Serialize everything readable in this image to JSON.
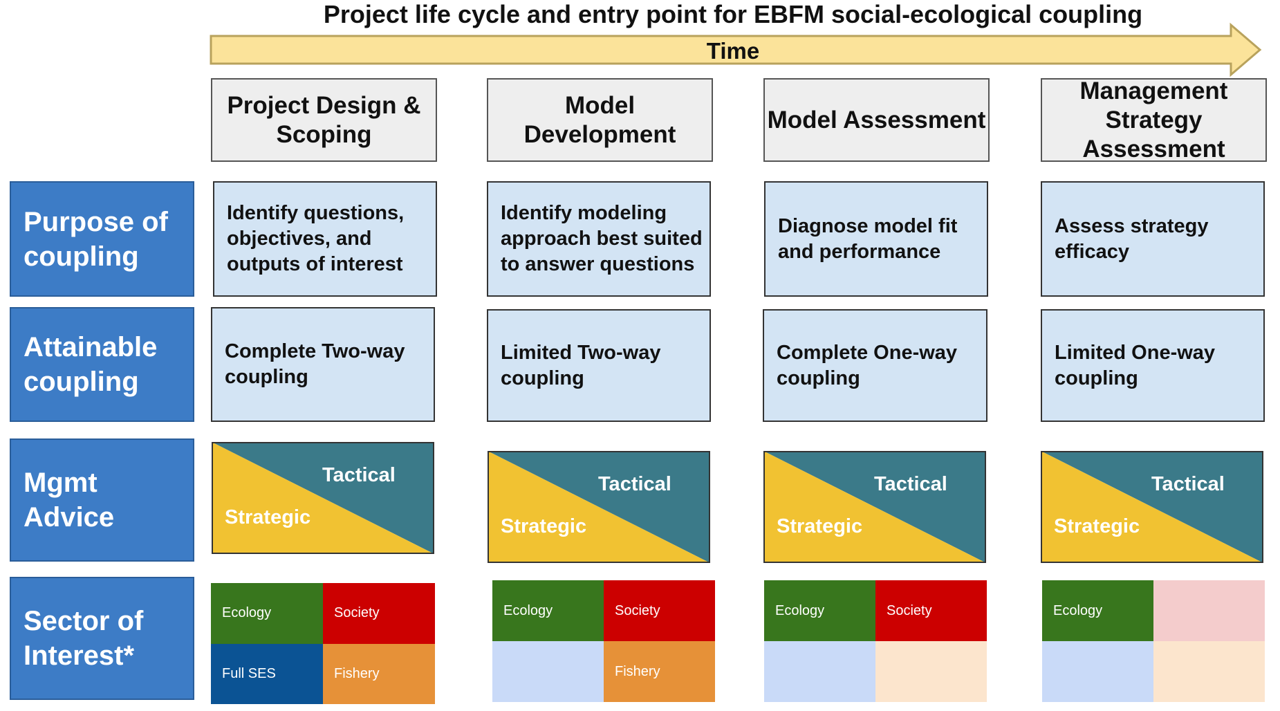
{
  "title": "Project life cycle and entry point for EBFM social-ecological coupling",
  "time_label": "Time",
  "phases": [
    "Project Design & Scoping",
    "Model Development",
    "Model Assessment",
    "Management Strategy Assessment"
  ],
  "rows": [
    "Purpose of coupling",
    "Attainable coupling",
    "Mgmt Advice",
    "Sector of Interest*"
  ],
  "purpose": [
    "Identify questions, objectives, and outputs of interest",
    "Identify modeling approach best suited to answer questions",
    "Diagnose model fit and performance",
    "Assess strategy efficacy"
  ],
  "attainable": [
    "Complete Two-way coupling",
    "Limited Two-way coupling",
    "Complete One-way coupling",
    "Limited One-way coupling"
  ],
  "advice": {
    "tactical": "Tactical",
    "strategic": "Strategic"
  },
  "sectors": [
    [
      "Ecology",
      "Society",
      "Full SES",
      "Fishery"
    ],
    [
      "Ecology",
      "Society",
      "",
      "Fishery"
    ],
    [
      "Ecology",
      "Society",
      "",
      ""
    ],
    [
      "Ecology",
      "",
      "",
      ""
    ]
  ],
  "colors": {
    "arrow_fill": "#fbe39a",
    "arrow_stroke": "#b8a25c",
    "row_label": "#3d7cc6",
    "cell_fill": "#d3e4f4",
    "phase_fill": "#eeeeee",
    "tactical": "#3b7a89",
    "strategic": "#f1c232",
    "ecology": "#38761d",
    "society": "#cc0000",
    "full_ses": "#0b5394",
    "fishery": "#e69138",
    "society_faded": "#f4cccc",
    "fishery_faded": "#fce5cd",
    "full_ses_faded": "#c9daf8"
  }
}
